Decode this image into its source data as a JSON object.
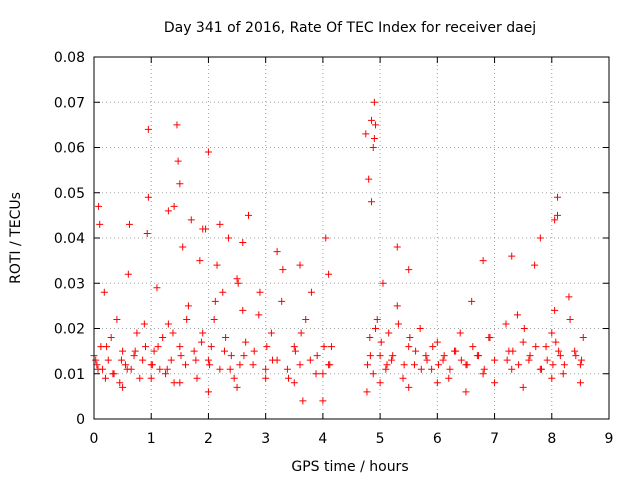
{
  "chart_data": {
    "type": "scatter",
    "title": "Day 341 of 2016, Rate Of TEC Index for receiver daej",
    "xlabel": "GPS time / hours",
    "ylabel": "ROTI / TECUs",
    "xlim": [
      0,
      9
    ],
    "ylim": [
      0,
      0.08
    ],
    "xticks": [
      0,
      1,
      2,
      3,
      4,
      5,
      6,
      7,
      8,
      9
    ],
    "xtick_labels": [
      "0",
      "1",
      "2",
      "3",
      "4",
      "5",
      "6",
      "7",
      "8",
      "9"
    ],
    "yticks": [
      0,
      0.01,
      0.02,
      0.03,
      0.04,
      0.05,
      0.06,
      0.07,
      0.08
    ],
    "ytick_labels": [
      "0",
      "0.01",
      "0.02",
      "0.03",
      "0.04",
      "0.05",
      "0.06",
      "0.07",
      "0.08"
    ],
    "grid": true,
    "marker": "+",
    "color": "#ff0000",
    "series": [
      {
        "name": "ROTI",
        "x": [
          0.0,
          0.05,
          0.08,
          0.1,
          0.12,
          0.15,
          0.18,
          0.2,
          0.25,
          0.3,
          0.35,
          0.4,
          0.45,
          0.5,
          0.55,
          0.6,
          0.62,
          0.65,
          0.7,
          0.75,
          0.8,
          0.85,
          0.9,
          0.93,
          0.95,
          1.0,
          1.05,
          1.1,
          1.15,
          1.2,
          1.25,
          1.3,
          1.35,
          1.4,
          1.45,
          1.5,
          1.55,
          1.6,
          1.65,
          1.7,
          1.75,
          1.8,
          1.85,
          1.9,
          1.95,
          2.0,
          2.05,
          2.1,
          2.15,
          2.2,
          2.25,
          2.3,
          2.35,
          2.4,
          2.45,
          2.5,
          2.55,
          2.6,
          2.65,
          2.7,
          2.8,
          2.9,
          3.0,
          3.1,
          3.2,
          3.3,
          3.4,
          3.5,
          3.6,
          3.65,
          3.7,
          3.8,
          3.9,
          4.0,
          4.05,
          4.1,
          4.15,
          4.75,
          4.78,
          4.8,
          4.82,
          4.85,
          4.88,
          4.9,
          4.95,
          5.0,
          5.05,
          5.1,
          5.15,
          5.2,
          5.3,
          5.4,
          5.5,
          5.6,
          5.7,
          5.8,
          5.9,
          6.0,
          6.1,
          6.2,
          6.3,
          6.4,
          6.5,
          6.6,
          6.7,
          6.8,
          6.9,
          7.0,
          7.2,
          7.25,
          7.3,
          7.4,
          7.5,
          7.6,
          7.7,
          7.8,
          7.9,
          8.0,
          8.02,
          8.05,
          8.1,
          8.15,
          8.2,
          8.3,
          8.4,
          8.5,
          8.55,
          0.03,
          0.07,
          0.22,
          0.33,
          0.48,
          0.58,
          0.72,
          0.88,
          1.02,
          1.12,
          1.28,
          1.38,
          1.52,
          1.62,
          1.78,
          1.88,
          2.02,
          2.12,
          2.28,
          2.38,
          2.52,
          2.62,
          2.78,
          2.88,
          3.02,
          3.12,
          3.28,
          3.38,
          3.52,
          3.62,
          3.78,
          3.88,
          4.02,
          4.12,
          4.77,
          4.83,
          4.92,
          5.02,
          5.12,
          5.22,
          5.32,
          5.42,
          5.52,
          5.62,
          5.72,
          5.82,
          5.92,
          6.02,
          6.12,
          6.22,
          6.32,
          6.42,
          6.52,
          6.62,
          6.72,
          6.82,
          6.92,
          7.22,
          7.32,
          7.42,
          7.52,
          7.62,
          7.72,
          7.82,
          7.92,
          8.07,
          8.12,
          8.22,
          8.32,
          8.42,
          8.52,
          0.5,
          1.0,
          1.5,
          2.0,
          2.5,
          3.0,
          3.5,
          4.0,
          5.0,
          5.5,
          6.0,
          6.5,
          7.0,
          7.5,
          8.0,
          8.5,
          1.47,
          1.5,
          2.0,
          4.88,
          4.9,
          4.92,
          4.85,
          0.95,
          1.3,
          1.4,
          1.9,
          2.2,
          2.6,
          3.2,
          3.6,
          4.1,
          5.3,
          5.5,
          6.8,
          7.3,
          7.8,
          8.05,
          8.1
        ],
        "y": [
          0.014,
          0.012,
          0.047,
          0.043,
          0.016,
          0.011,
          0.028,
          0.009,
          0.013,
          0.018,
          0.01,
          0.022,
          0.008,
          0.015,
          0.012,
          0.032,
          0.043,
          0.011,
          0.014,
          0.019,
          0.009,
          0.013,
          0.016,
          0.041,
          0.064,
          0.012,
          0.015,
          0.029,
          0.011,
          0.018,
          0.01,
          0.021,
          0.013,
          0.008,
          0.065,
          0.016,
          0.038,
          0.012,
          0.025,
          0.044,
          0.015,
          0.009,
          0.035,
          0.019,
          0.042,
          0.013,
          0.016,
          0.022,
          0.034,
          0.011,
          0.028,
          0.018,
          0.04,
          0.014,
          0.009,
          0.031,
          0.012,
          0.024,
          0.017,
          0.045,
          0.015,
          0.028,
          0.011,
          0.019,
          0.013,
          0.033,
          0.009,
          0.016,
          0.012,
          0.004,
          0.022,
          0.028,
          0.014,
          0.01,
          0.04,
          0.012,
          0.016,
          0.063,
          0.012,
          0.053,
          0.018,
          0.066,
          0.01,
          0.07,
          0.022,
          0.014,
          0.03,
          0.011,
          0.019,
          0.013,
          0.025,
          0.009,
          0.016,
          0.012,
          0.02,
          0.014,
          0.011,
          0.017,
          0.013,
          0.009,
          0.015,
          0.019,
          0.012,
          0.026,
          0.014,
          0.01,
          0.018,
          0.013,
          0.021,
          0.015,
          0.011,
          0.023,
          0.017,
          0.013,
          0.034,
          0.011,
          0.016,
          0.019,
          0.012,
          0.024,
          0.049,
          0.014,
          0.01,
          0.027,
          0.015,
          0.012,
          0.018,
          0.013,
          0.011,
          0.016,
          0.01,
          0.013,
          0.011,
          0.015,
          0.021,
          0.012,
          0.016,
          0.011,
          0.019,
          0.014,
          0.022,
          0.013,
          0.017,
          0.012,
          0.026,
          0.015,
          0.011,
          0.03,
          0.014,
          0.012,
          0.023,
          0.016,
          0.013,
          0.026,
          0.011,
          0.015,
          0.019,
          0.013,
          0.01,
          0.016,
          0.012,
          0.006,
          0.014,
          0.02,
          0.017,
          0.012,
          0.014,
          0.021,
          0.012,
          0.018,
          0.015,
          0.011,
          0.013,
          0.016,
          0.012,
          0.014,
          0.011,
          0.015,
          0.013,
          0.012,
          0.016,
          0.014,
          0.011,
          0.018,
          0.013,
          0.015,
          0.012,
          0.02,
          0.014,
          0.016,
          0.011,
          0.013,
          0.017,
          0.015,
          0.012,
          0.022,
          0.014,
          0.013,
          0.007,
          0.009,
          0.008,
          0.006,
          0.007,
          0.009,
          0.008,
          0.004,
          0.008,
          0.007,
          0.008,
          0.006,
          0.008,
          0.007,
          0.009,
          0.008,
          0.057,
          0.052,
          0.059,
          0.06,
          0.062,
          0.065,
          0.048,
          0.049,
          0.046,
          0.047,
          0.042,
          0.043,
          0.039,
          0.037,
          0.034,
          0.032,
          0.038,
          0.033,
          0.035,
          0.036,
          0.04,
          0.044,
          0.045
        ]
      }
    ]
  }
}
